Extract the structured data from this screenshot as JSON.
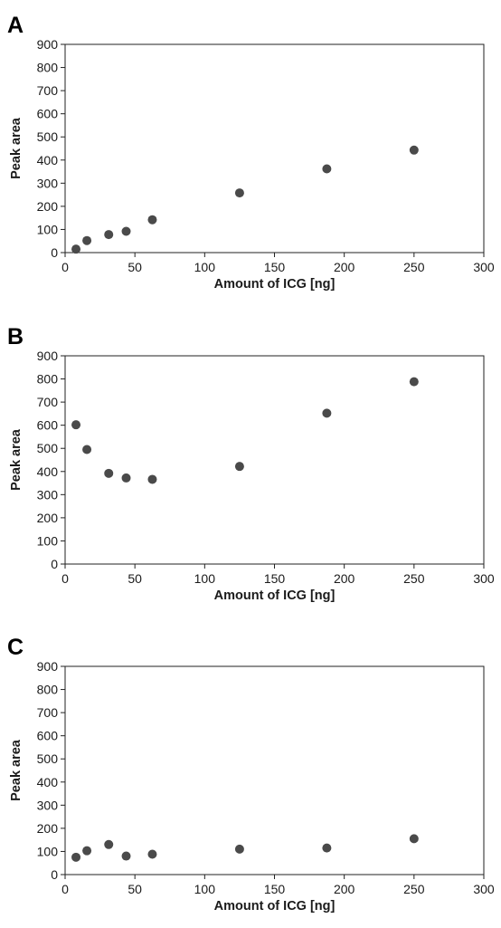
{
  "chart_data": [
    {
      "type": "scatter",
      "panel": "A",
      "xlabel": "Amount of ICG [ng]",
      "ylabel": "Peak area",
      "xlim": [
        0,
        300
      ],
      "ylim": [
        0,
        900
      ],
      "xticks": [
        0,
        50,
        100,
        150,
        200,
        250,
        300
      ],
      "yticks": [
        0,
        100,
        200,
        300,
        400,
        500,
        600,
        700,
        800,
        900
      ],
      "grid": false,
      "marker_color": "#4a4a4a",
      "x": [
        7.8,
        15.6,
        31.25,
        43.75,
        62.5,
        125,
        187.5,
        250
      ],
      "y": [
        15,
        52,
        78,
        92,
        142,
        258,
        362,
        443
      ]
    },
    {
      "type": "scatter",
      "panel": "B",
      "xlabel": "Amount of ICG [ng]",
      "ylabel": "Peak area",
      "xlim": [
        0,
        300
      ],
      "ylim": [
        0,
        900
      ],
      "xticks": [
        0,
        50,
        100,
        150,
        200,
        250,
        300
      ],
      "yticks": [
        0,
        100,
        200,
        300,
        400,
        500,
        600,
        700,
        800,
        900
      ],
      "grid": false,
      "marker_color": "#4a4a4a",
      "x": [
        7.8,
        15.6,
        31.25,
        43.75,
        62.5,
        125,
        187.5,
        250
      ],
      "y": [
        602,
        495,
        392,
        372,
        366,
        422,
        652,
        788
      ]
    },
    {
      "type": "scatter",
      "panel": "C",
      "xlabel": "Amount of ICG [ng]",
      "ylabel": "Peak area",
      "xlim": [
        0,
        300
      ],
      "ylim": [
        0,
        900
      ],
      "xticks": [
        0,
        50,
        100,
        150,
        200,
        250,
        300
      ],
      "yticks": [
        0,
        100,
        200,
        300,
        400,
        500,
        600,
        700,
        800,
        900
      ],
      "grid": false,
      "marker_color": "#4a4a4a",
      "x": [
        7.8,
        15.6,
        31.25,
        43.75,
        62.5,
        125,
        187.5,
        250
      ],
      "y": [
        75,
        103,
        130,
        80,
        88,
        110,
        115,
        155
      ]
    }
  ]
}
